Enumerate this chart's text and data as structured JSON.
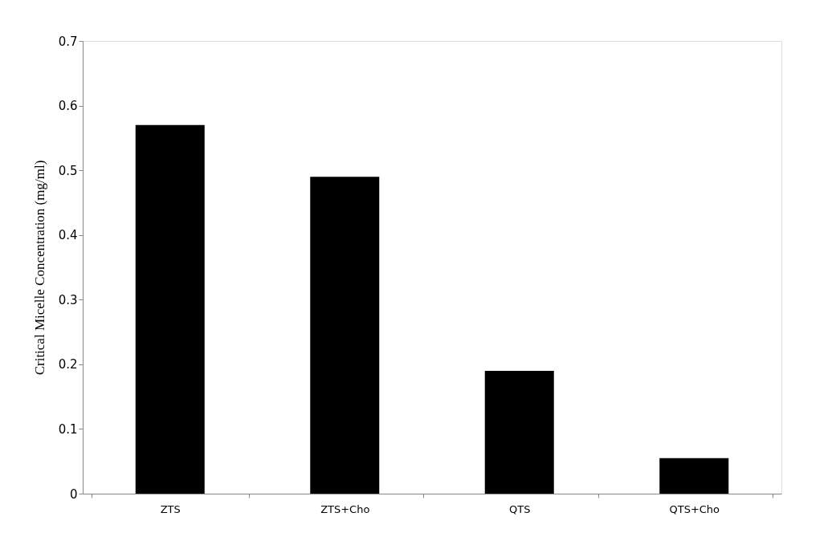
{
  "chart_data": {
    "type": "bar",
    "ylabel": "Critical Micelle Concentration (mg/ml)",
    "categories": [
      "ZTS",
      "ZTS+Cho",
      "QTS",
      "QTS+Cho"
    ],
    "values": [
      0.57,
      0.49,
      0.19,
      0.055
    ],
    "color": "#000000",
    "ylim": [
      0,
      0.7
    ],
    "yticks": [
      0,
      0.1,
      0.2,
      0.3,
      0.4,
      0.5,
      0.6,
      0.7
    ],
    "grid": false
  }
}
